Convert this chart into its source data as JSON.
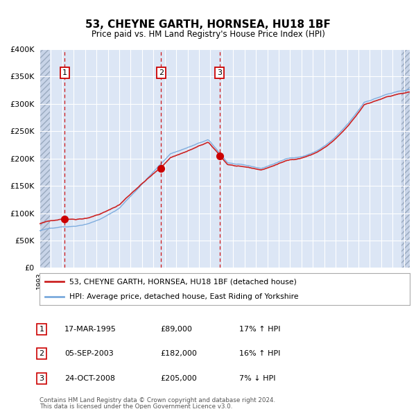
{
  "title": "53, CHEYNE GARTH, HORNSEA, HU18 1BF",
  "subtitle": "Price paid vs. HM Land Registry's House Price Index (HPI)",
  "legend_line1": "53, CHEYNE GARTH, HORNSEA, HU18 1BF (detached house)",
  "legend_line2": "HPI: Average price, detached house, East Riding of Yorkshire",
  "table_rows": [
    {
      "num": "1",
      "date": "17-MAR-1995",
      "price": "£89,000",
      "hpi": "17% ↑ HPI"
    },
    {
      "num": "2",
      "date": "05-SEP-2003",
      "price": "£182,000",
      "hpi": "16% ↑ HPI"
    },
    {
      "num": "3",
      "date": "24-OCT-2008",
      "price": "£205,000",
      "hpi": "7% ↓ HPI"
    }
  ],
  "footnote1": "Contains HM Land Registry data © Crown copyright and database right 2024.",
  "footnote2": "This data is licensed under the Open Government Licence v3.0.",
  "hpi_color": "#7aaadd",
  "price_color": "#cc2222",
  "dot_color": "#cc0000",
  "vline_color": "#cc0000",
  "background_color": "#dce6f5",
  "grid_color": "#ffffff",
  "ylim": [
    0,
    400000
  ],
  "yticks": [
    0,
    50000,
    100000,
    150000,
    200000,
    250000,
    300000,
    350000,
    400000
  ],
  "transactions": [
    {
      "date_num": 1995.21,
      "price": 89000,
      "label": "1"
    },
    {
      "date_num": 2003.67,
      "price": 182000,
      "label": "2"
    },
    {
      "date_num": 2008.81,
      "price": 205000,
      "label": "3"
    }
  ],
  "xlim_start": 1993.0,
  "xlim_end": 2025.5,
  "hatch_left_end": 1993.92,
  "hatch_right_start": 2024.75
}
